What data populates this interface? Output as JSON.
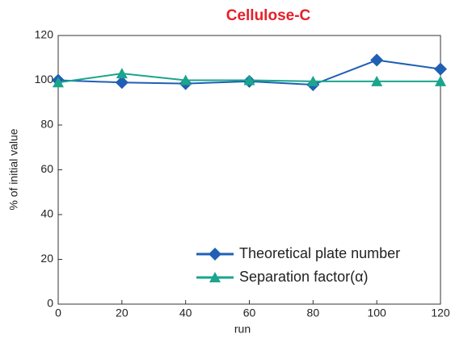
{
  "chart_data": {
    "type": "line",
    "title": "Cellulose-C",
    "x_label": "run",
    "y_label": "% of initial value",
    "x": [
      0,
      20,
      40,
      60,
      80,
      100,
      120
    ],
    "series": [
      {
        "name": "Theoretical plate number",
        "color": "#1f5fb4",
        "marker": "diamond",
        "values": [
          100,
          99,
          98.5,
          99.5,
          98,
          109,
          105
        ]
      },
      {
        "name": "Separation factor(α)",
        "color": "#1aa58c",
        "marker": "triangle",
        "values": [
          99,
          103,
          100,
          100,
          99.5,
          99.5,
          99.5
        ]
      }
    ],
    "xlim": [
      0,
      120
    ],
    "xticks": [
      0,
      20,
      40,
      60,
      80,
      100,
      120
    ],
    "ylim": [
      0,
      120
    ],
    "yticks": [
      0,
      20,
      40,
      60,
      80,
      100,
      120
    ],
    "legend": "lower right"
  }
}
